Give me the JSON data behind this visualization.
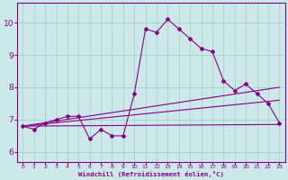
{
  "xlabel": "Windchill (Refroidissement éolien,°C)",
  "xlim": [
    -0.5,
    23.5
  ],
  "ylim": [
    5.7,
    10.6
  ],
  "yticks": [
    6,
    7,
    8,
    9,
    10
  ],
  "xticks": [
    0,
    1,
    2,
    3,
    4,
    5,
    6,
    7,
    8,
    9,
    10,
    11,
    12,
    13,
    14,
    15,
    16,
    17,
    18,
    19,
    20,
    21,
    22,
    23
  ],
  "background_color": "#cce8e8",
  "grid_color": "#aad4d4",
  "line_color": "#880088",
  "series1_x": [
    0,
    1,
    2,
    3,
    4,
    5,
    6,
    7,
    8,
    9,
    10,
    11,
    12,
    13,
    14,
    15,
    16,
    17,
    18,
    19,
    20,
    21,
    22,
    23
  ],
  "series1_y": [
    6.8,
    6.7,
    6.9,
    7.0,
    7.1,
    7.1,
    6.4,
    6.7,
    6.5,
    6.5,
    7.8,
    9.8,
    9.7,
    10.1,
    9.8,
    9.5,
    9.2,
    9.1,
    8.2,
    7.9,
    8.1,
    7.8,
    7.5,
    6.9
  ],
  "series2_x": [
    0,
    23
  ],
  "series2_y": [
    6.8,
    6.85
  ],
  "series3_x": [
    0,
    23
  ],
  "series3_y": [
    6.8,
    7.6
  ],
  "series4_x": [
    0,
    23
  ],
  "series4_y": [
    6.8,
    8.0
  ]
}
